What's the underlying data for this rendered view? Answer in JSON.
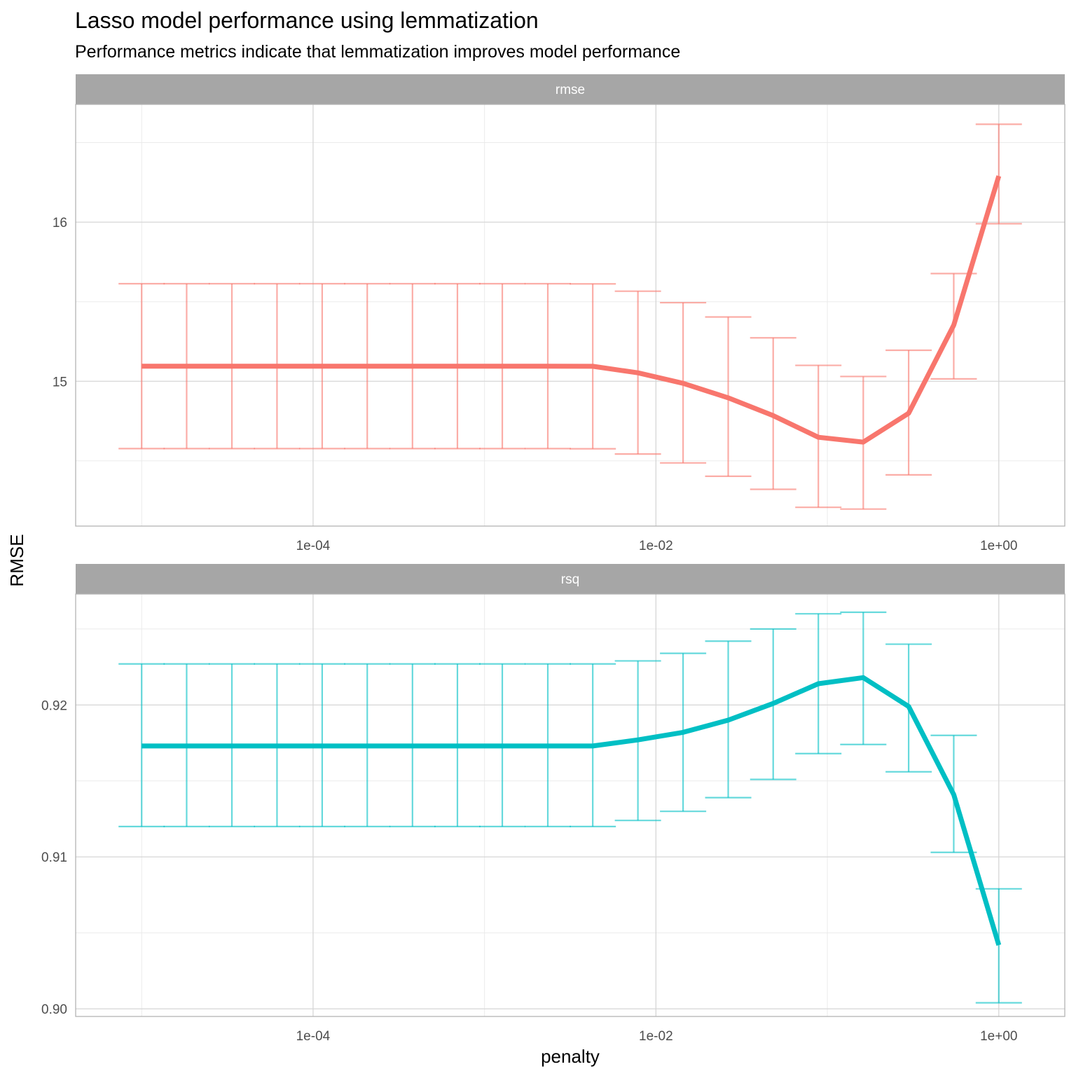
{
  "chart_data": {
    "type": "line",
    "title": "Lasso model performance using lemmatization",
    "subtitle": "Performance metrics indicate that lemmatization improves model performance",
    "xlabel": "penalty",
    "ylabel": "RMSE",
    "x_scale": "log10",
    "x_tick_labels": [
      "1e-04",
      "1e-02",
      "1e+00"
    ],
    "x_tick_values": [
      0.0001,
      0.01,
      1
    ],
    "penalty": [
      1e-05,
      1.83e-05,
      3.36e-05,
      6.16e-05,
      0.000113,
      0.000207,
      0.00038,
      0.000695,
      0.00127,
      0.00234,
      0.00428,
      0.00785,
      0.0144,
      0.0264,
      0.0483,
      0.0886,
      0.162,
      0.298,
      0.546,
      1
    ],
    "panels": [
      {
        "strip_label": "rmse",
        "color": "#F8766D",
        "ylim": [
          14.09,
          16.74
        ],
        "y_ticks": [
          15,
          16
        ],
        "y_tick_labels": [
          "15",
          "16"
        ],
        "mean": [
          15.095,
          15.095,
          15.095,
          15.095,
          15.095,
          15.095,
          15.095,
          15.095,
          15.095,
          15.095,
          15.094,
          15.053,
          14.987,
          14.896,
          14.784,
          14.648,
          14.618,
          14.799,
          15.353,
          16.29
        ],
        "lower": [
          14.577,
          14.577,
          14.577,
          14.577,
          14.577,
          14.577,
          14.577,
          14.577,
          14.577,
          14.577,
          14.576,
          14.543,
          14.487,
          14.403,
          14.321,
          14.208,
          14.197,
          14.412,
          15.015,
          15.99
        ],
        "upper": [
          15.613,
          15.613,
          15.613,
          15.613,
          15.613,
          15.613,
          15.613,
          15.613,
          15.613,
          15.613,
          15.612,
          15.566,
          15.494,
          15.404,
          15.273,
          15.1,
          15.03,
          15.195,
          15.677,
          16.615
        ]
      },
      {
        "strip_label": "rsq",
        "color": "#00BFC4",
        "ylim": [
          0.8995,
          0.9273
        ],
        "y_ticks": [
          0.9,
          0.91,
          0.92
        ],
        "y_tick_labels": [
          "0.90",
          "0.91",
          "0.92"
        ],
        "mean": [
          0.9173,
          0.9173,
          0.9173,
          0.9173,
          0.9173,
          0.9173,
          0.9173,
          0.9173,
          0.9173,
          0.9173,
          0.9173,
          0.9177,
          0.9182,
          0.919,
          0.9201,
          0.9214,
          0.9218,
          0.9199,
          0.9141,
          0.9042
        ],
        "lower": [
          0.912,
          0.912,
          0.912,
          0.912,
          0.912,
          0.912,
          0.912,
          0.912,
          0.912,
          0.912,
          0.912,
          0.9124,
          0.913,
          0.9139,
          0.9151,
          0.9168,
          0.9174,
          0.9156,
          0.9103,
          0.9004
        ],
        "upper": [
          0.9227,
          0.9227,
          0.9227,
          0.9227,
          0.9227,
          0.9227,
          0.9227,
          0.9227,
          0.9227,
          0.9227,
          0.9227,
          0.9229,
          0.9234,
          0.9242,
          0.925,
          0.926,
          0.9261,
          0.924,
          0.918,
          0.9079
        ]
      }
    ]
  }
}
